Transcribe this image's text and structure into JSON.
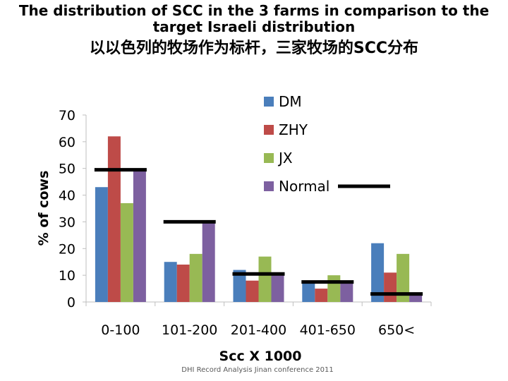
{
  "title": "The distribution of SCC in the 3 farms in comparison to the target Israeli distribution",
  "title_cn": "以以色列的牧场作为标杆，三家牧场的SCC分布",
  "footer": "DHI Record Analysis Jinan conference 2011",
  "colors": {
    "DM": "#4a7ebb",
    "ZHY": "#be4b48",
    "JX": "#98b954",
    "Normal": "#7d60a0",
    "target": "#000000",
    "axis": "#bfbfbf"
  },
  "chart_data": {
    "type": "bar",
    "categories": [
      "0-100",
      "101-200",
      "201-400",
      "401-650",
      "650<"
    ],
    "series": [
      {
        "name": "DM",
        "values": [
          43,
          15,
          12,
          7,
          22
        ]
      },
      {
        "name": "ZHY",
        "values": [
          62,
          14,
          8,
          5,
          11
        ]
      },
      {
        "name": "JX",
        "values": [
          37,
          18,
          17,
          10,
          18
        ]
      },
      {
        "name": "Normal",
        "values": [
          50,
          30,
          11,
          8,
          3
        ]
      }
    ],
    "target_values": [
      49.5,
      30,
      10.5,
      7.5,
      3
    ],
    "xlabel": "Scc X 1000",
    "ylabel": "% of cows",
    "ylim": [
      0,
      70
    ],
    "yticks": [
      0,
      10,
      20,
      30,
      40,
      50,
      60,
      70
    ],
    "grid": false,
    "legend_position": "top-right"
  }
}
